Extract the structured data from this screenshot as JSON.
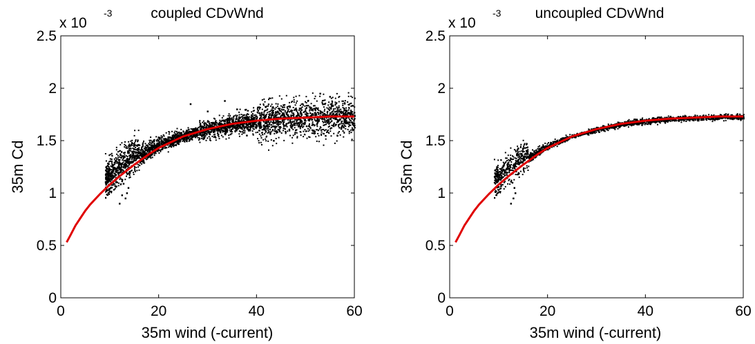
{
  "chart_data": [
    {
      "type": "scatter",
      "title": "coupled CDvWnd",
      "xlabel": "35m wind (-current)",
      "ylabel": "35m Cd",
      "xlim": [
        0,
        60
      ],
      "ylim": [
        0,
        2.5
      ],
      "y_multiplier": "x 10",
      "y_multiplier_exp": "-3",
      "xticks": [
        "0",
        "20",
        "40",
        "60"
      ],
      "yticks": [
        "0",
        "0.5",
        "1",
        "1.5",
        "2",
        "2.5"
      ],
      "scatter_color": "#000000",
      "fit_color": "#e00000",
      "spread": 0.045,
      "fit_curve": {
        "x": [
          1.2,
          2,
          3,
          4,
          5,
          6,
          8,
          10,
          12,
          15,
          18,
          20,
          25,
          30,
          35,
          40,
          45,
          50,
          55,
          60
        ],
        "y": [
          0.53,
          0.6,
          0.69,
          0.76,
          0.83,
          0.89,
          0.99,
          1.08,
          1.16,
          1.27,
          1.37,
          1.43,
          1.54,
          1.61,
          1.66,
          1.69,
          1.71,
          1.72,
          1.73,
          1.73
        ]
      },
      "cloud_range": [
        9,
        60
      ],
      "outliers": {
        "x": [
          12.0,
          12.5,
          13.2,
          13.8,
          12.8,
          13.5,
          26.5,
          30.0,
          33.5,
          36.0,
          40.5,
          45.5,
          50.5,
          53.0,
          55.0,
          58.0,
          38.0,
          43.5,
          48.0,
          56.5
        ],
        "y": [
          0.9,
          0.98,
          0.95,
          1.05,
          1.09,
          1.0,
          1.85,
          1.78,
          1.88,
          1.8,
          1.82,
          1.84,
          1.88,
          1.95,
          1.92,
          1.86,
          1.55,
          1.5,
          1.6,
          1.55
        ]
      }
    },
    {
      "type": "scatter",
      "title": "uncoupled CDvWnd",
      "xlabel": "35m wind (-current)",
      "ylabel": "35m Cd",
      "xlim": [
        0,
        60
      ],
      "ylim": [
        0,
        2.5
      ],
      "y_multiplier": "x 10",
      "y_multiplier_exp": "-3",
      "xticks": [
        "0",
        "20",
        "40",
        "60"
      ],
      "yticks": [
        "0",
        "0.5",
        "1",
        "1.5",
        "2",
        "2.5"
      ],
      "scatter_color": "#000000",
      "fit_color": "#e00000",
      "spread": 0.012,
      "fit_curve": {
        "x": [
          1.2,
          2,
          3,
          4,
          5,
          6,
          8,
          10,
          12,
          15,
          18,
          20,
          25,
          30,
          35,
          40,
          45,
          50,
          55,
          60
        ],
        "y": [
          0.53,
          0.6,
          0.69,
          0.76,
          0.83,
          0.89,
          0.99,
          1.08,
          1.16,
          1.27,
          1.37,
          1.43,
          1.54,
          1.61,
          1.66,
          1.69,
          1.71,
          1.72,
          1.73,
          1.73
        ]
      },
      "cloud_range": [
        9,
        60
      ],
      "outliers": {
        "x": [
          12.5,
          13.0,
          13.4,
          12.8,
          13.2
        ],
        "y": [
          0.9,
          0.95,
          1.0,
          1.1,
          1.05
        ]
      }
    }
  ]
}
